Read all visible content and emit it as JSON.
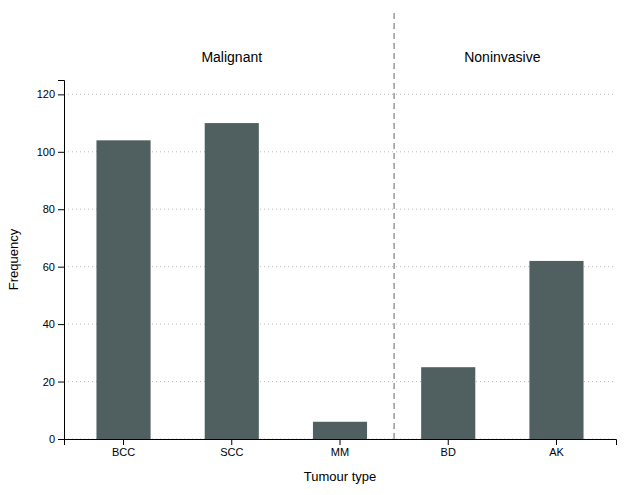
{
  "chart_data": {
    "type": "bar",
    "categories": [
      "BCC",
      "SCC",
      "MM",
      "BD",
      "AK"
    ],
    "values": [
      104,
      110,
      6,
      25,
      62
    ],
    "color": "#506060",
    "xlabel": "Tumour type",
    "ylabel": "Frequency",
    "ylim": [
      0,
      125
    ],
    "yticks": [
      0,
      20,
      40,
      60,
      80,
      100,
      120
    ],
    "grid": true,
    "annotations": [
      {
        "text": "Malignant",
        "categories": [
          "BCC",
          "SCC",
          "MM"
        ]
      },
      {
        "text": "Noninvasive",
        "categories": [
          "BD",
          "AK"
        ]
      }
    ]
  }
}
